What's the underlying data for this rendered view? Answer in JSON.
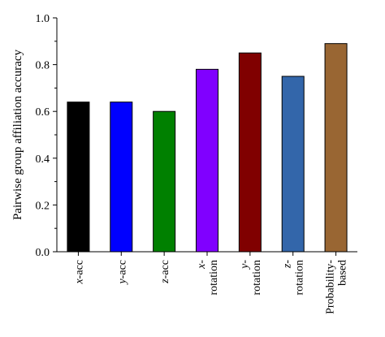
{
  "chart_data": {
    "type": "bar",
    "title": "",
    "ylabel": "Pairwise group affiliation accuracy",
    "xlabel": "",
    "ylim": [
      0,
      1.0
    ],
    "yticks": [
      "0.0",
      "0.2",
      "0.4",
      "0.6",
      "0.8",
      "1.0"
    ],
    "grid": false,
    "categories": [
      {
        "parts": [
          {
            "t": "x",
            "i": true
          },
          {
            "t": "-acc",
            "i": false
          }
        ],
        "lines": 1
      },
      {
        "parts": [
          {
            "t": "y",
            "i": true
          },
          {
            "t": "-acc",
            "i": false
          }
        ],
        "lines": 1
      },
      {
        "parts": [
          {
            "t": "z",
            "i": true
          },
          {
            "t": "-acc",
            "i": false
          }
        ],
        "lines": 1
      },
      {
        "line1": [
          {
            "t": "x",
            "i": true
          },
          {
            "t": "-",
            "i": false
          }
        ],
        "line2": "rotation",
        "lines": 2
      },
      {
        "line1": [
          {
            "t": "y",
            "i": true
          },
          {
            "t": "-",
            "i": false
          }
        ],
        "line2": "rotation",
        "lines": 2
      },
      {
        "line1": [
          {
            "t": "z",
            "i": true
          },
          {
            "t": "-",
            "i": false
          }
        ],
        "line2": "rotation",
        "lines": 2
      },
      {
        "line1": [
          {
            "t": "Probability-",
            "i": false
          }
        ],
        "line2": "based",
        "lines": 2
      }
    ],
    "values": [
      0.64,
      0.64,
      0.6,
      0.78,
      0.85,
      0.75,
      0.89
    ],
    "colors": [
      "#000000",
      "#0000ff",
      "#008000",
      "#8000ff",
      "#800000",
      "#3366aa",
      "#996633"
    ]
  }
}
